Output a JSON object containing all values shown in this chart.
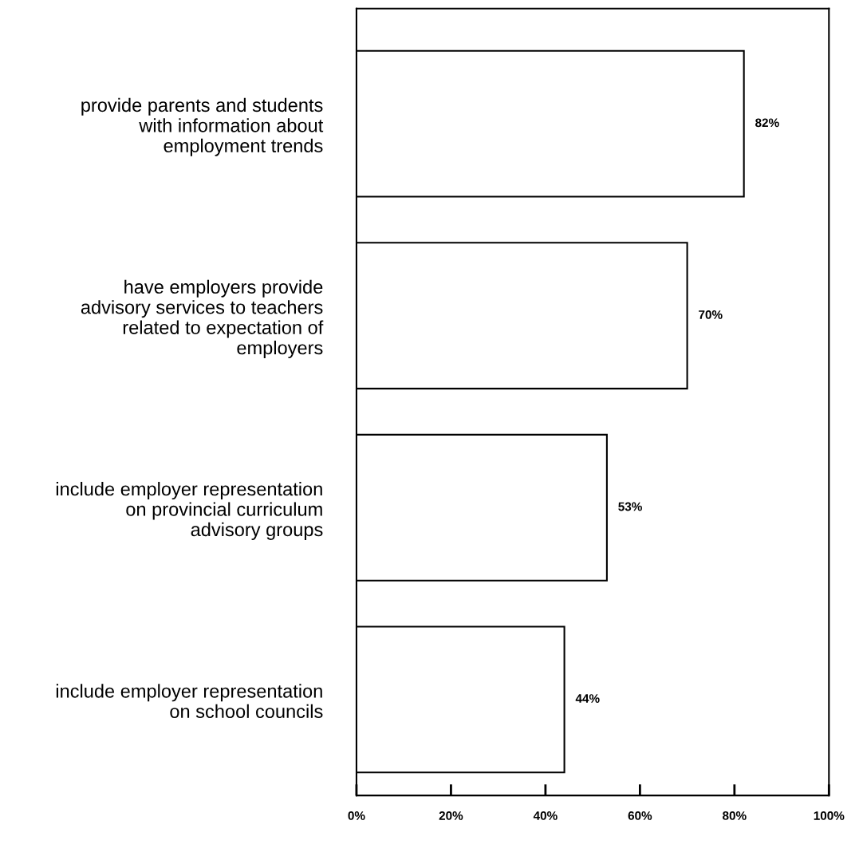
{
  "chart_data": {
    "type": "bar",
    "orientation": "horizontal",
    "categories": [
      "provide parents and students\nwith information about\nemployment trends",
      "have employers provide\nadvisory services to teachers\nrelated to expectation of\nemployers",
      "include employer representation\non provincial curriculum\nadvisory groups",
      "include employer representation\non school councils"
    ],
    "values": [
      82,
      70,
      53,
      44
    ],
    "value_labels": [
      "82%",
      "70%",
      "53%",
      "44%"
    ],
    "color": "#ffffff",
    "xlim": [
      0,
      100
    ],
    "xticks": [
      {
        "value": 0,
        "label": "0%"
      },
      {
        "value": 20,
        "label": "20%"
      },
      {
        "value": 40,
        "label": "40%"
      },
      {
        "value": 60,
        "label": "60%"
      },
      {
        "value": 80,
        "label": "80%"
      },
      {
        "value": 100,
        "label": "100%"
      }
    ],
    "grid": false
  }
}
